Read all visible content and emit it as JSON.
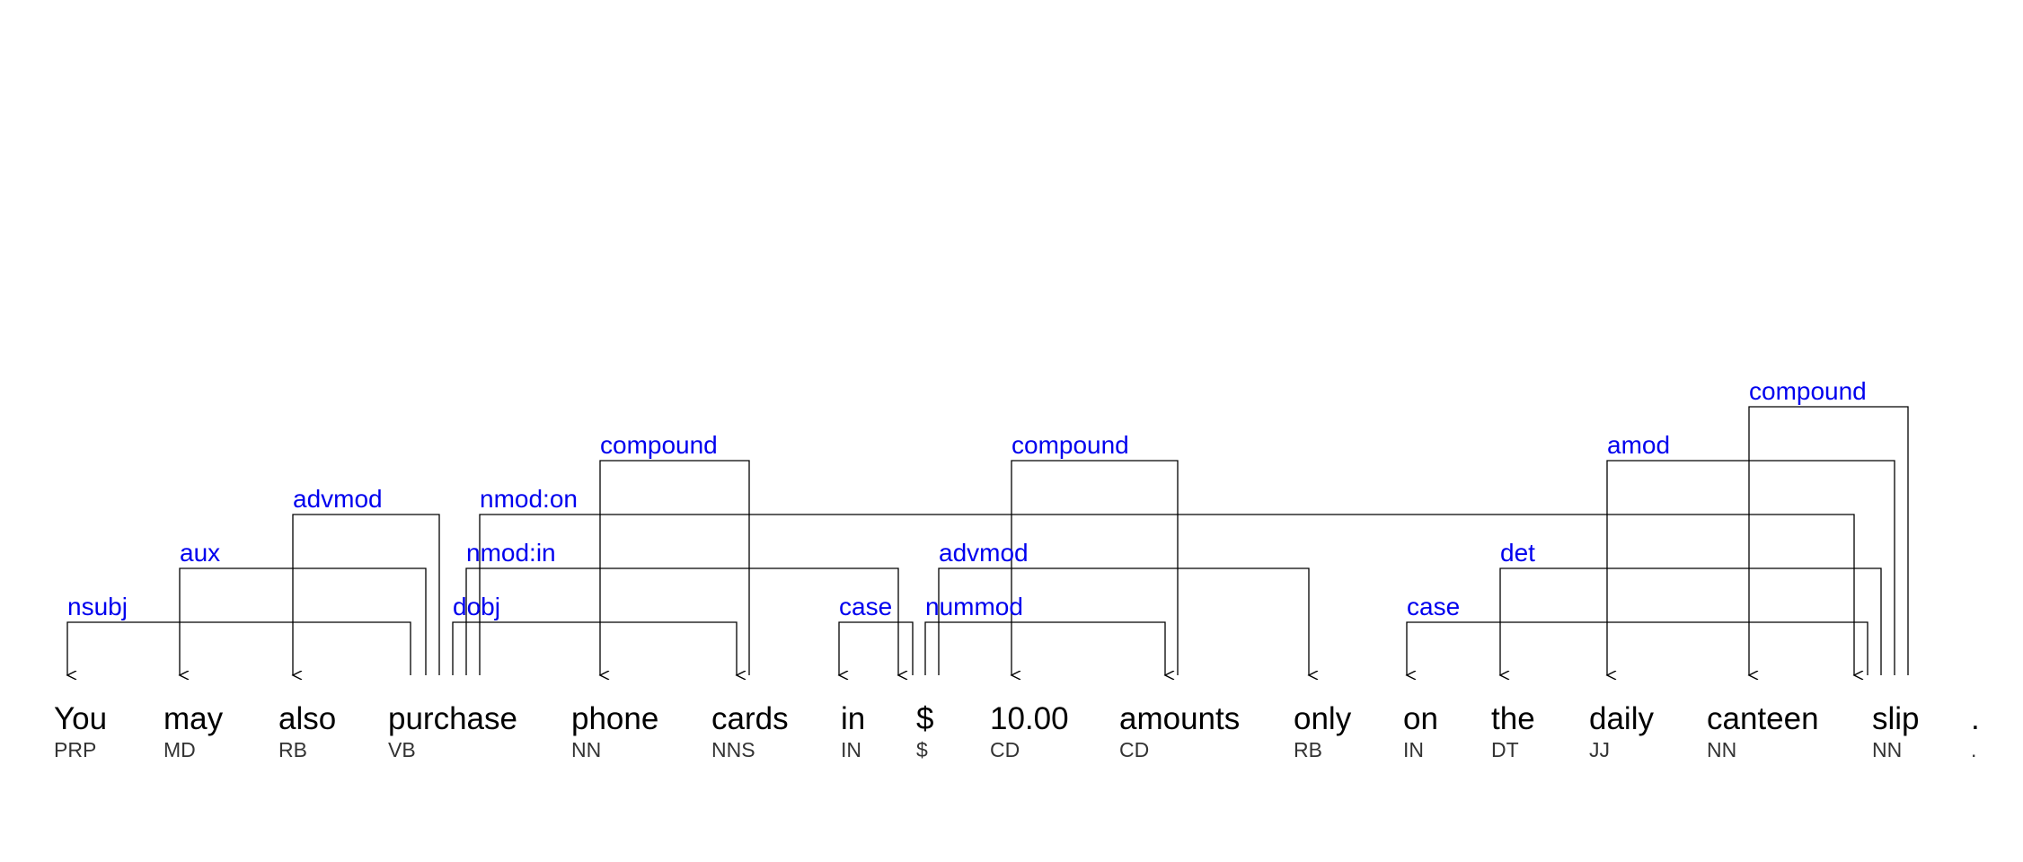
{
  "colors": {
    "relation_label": "#0000ee",
    "arc": "#000000",
    "word": "#000000",
    "tag": "#333333"
  },
  "tokens": [
    {
      "word": "You",
      "tag": "PRP"
    },
    {
      "word": "may",
      "tag": "MD"
    },
    {
      "word": "also",
      "tag": "RB"
    },
    {
      "word": "purchase",
      "tag": "VB"
    },
    {
      "word": "phone",
      "tag": "NN"
    },
    {
      "word": "cards",
      "tag": "NNS"
    },
    {
      "word": "in",
      "tag": "IN"
    },
    {
      "word": "$",
      "tag": "$"
    },
    {
      "word": "10.00",
      "tag": "CD"
    },
    {
      "word": "amounts",
      "tag": "CD"
    },
    {
      "word": "only",
      "tag": "RB"
    },
    {
      "word": "on",
      "tag": "IN"
    },
    {
      "word": "the",
      "tag": "DT"
    },
    {
      "word": "daily",
      "tag": "JJ"
    },
    {
      "word": "canteen",
      "tag": "NN"
    },
    {
      "word": "slip",
      "tag": "NN"
    },
    {
      "word": ".",
      "tag": "."
    }
  ],
  "dependencies": [
    {
      "label": "nsubj",
      "head": 3,
      "dep": 0
    },
    {
      "label": "aux",
      "head": 3,
      "dep": 1
    },
    {
      "label": "advmod",
      "head": 3,
      "dep": 2
    },
    {
      "label": "dobj",
      "head": 3,
      "dep": 5
    },
    {
      "label": "nmod:in",
      "head": 3,
      "dep": 7
    },
    {
      "label": "nmod:on",
      "head": 3,
      "dep": 15
    },
    {
      "label": "compound",
      "head": 5,
      "dep": 4
    },
    {
      "label": "case",
      "head": 7,
      "dep": 6
    },
    {
      "label": "nummod",
      "head": 7,
      "dep": 9
    },
    {
      "label": "advmod",
      "head": 7,
      "dep": 10
    },
    {
      "label": "compound",
      "head": 9,
      "dep": 8
    },
    {
      "label": "case",
      "head": 15,
      "dep": 11
    },
    {
      "label": "det",
      "head": 15,
      "dep": 12
    },
    {
      "label": "amod",
      "head": 15,
      "dep": 13
    },
    {
      "label": "compound",
      "head": 15,
      "dep": 14
    }
  ]
}
